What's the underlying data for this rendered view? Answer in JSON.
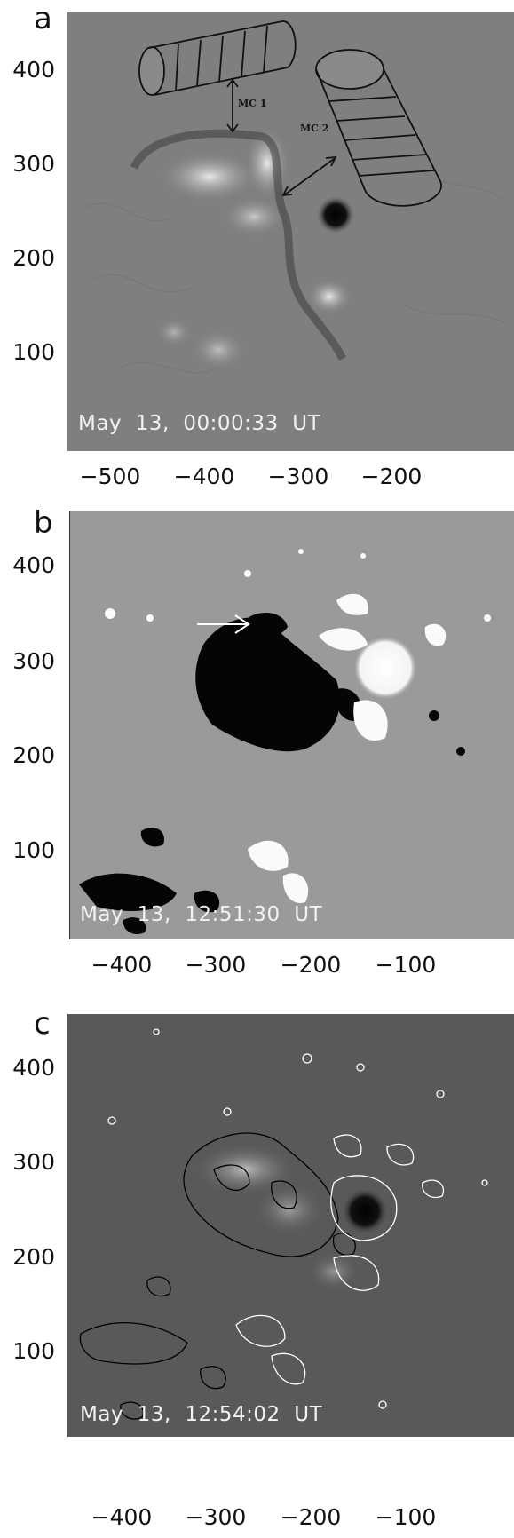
{
  "panels": [
    {
      "label": "a",
      "timestamp": "May  13,  00:00:33  UT",
      "y_ticks": [
        "400",
        "300",
        "200",
        "100"
      ],
      "x_ticks": [
        "−500",
        "−400",
        "−300",
        "−200"
      ],
      "annotations": {
        "mc1": "MC 1",
        "mc2": "MC 2"
      }
    },
    {
      "label": "b",
      "timestamp": "May  13,  12:51:30  UT",
      "y_ticks": [
        "400",
        "300",
        "200",
        "100"
      ],
      "x_ticks": [
        "−400",
        "−300",
        "−200",
        "−100"
      ]
    },
    {
      "label": "c",
      "timestamp": "May  13,  12:54:02  UT",
      "y_ticks": [
        "400",
        "300",
        "200",
        "100"
      ],
      "x_ticks": [
        "−400",
        "−300",
        "−200",
        "−100"
      ]
    }
  ]
}
